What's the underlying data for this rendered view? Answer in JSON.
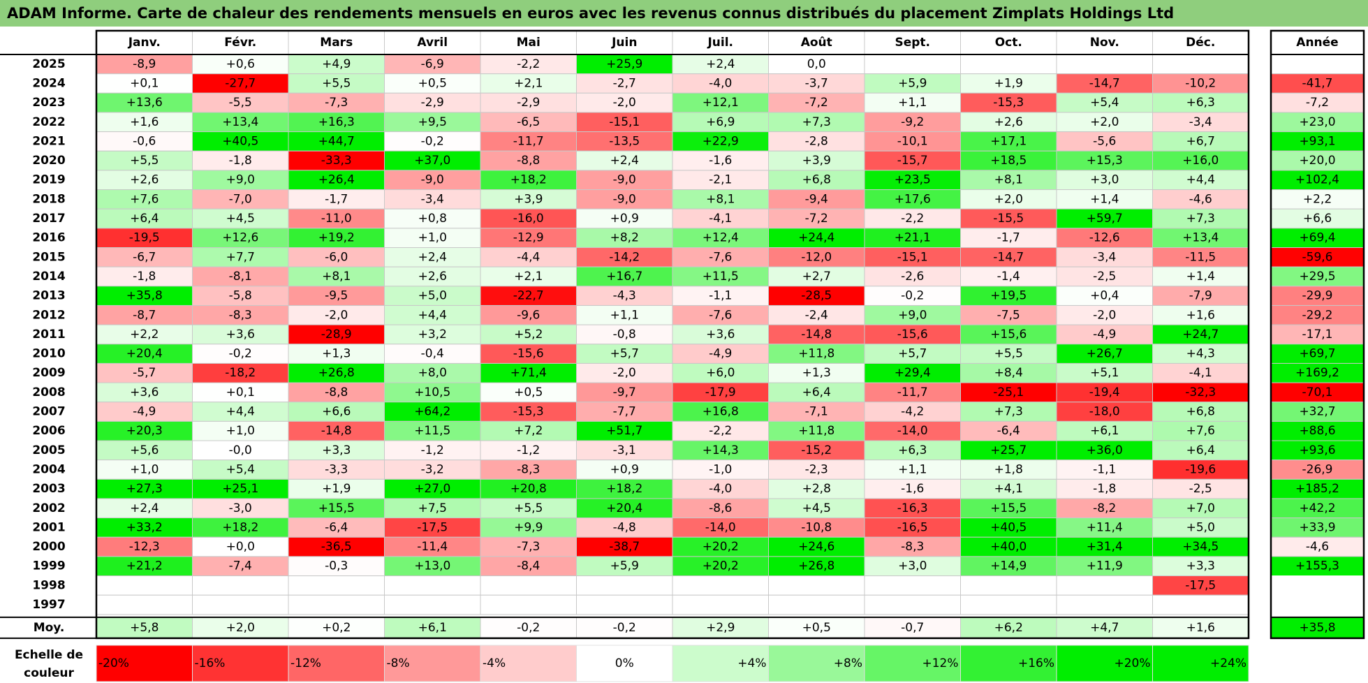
{
  "title": "ADAM Informe. Carte de chaleur des rendements mensuels en euros avec les revenus connus distribués du placement Zimplats Holdings Ltd",
  "chart_data": {
    "type": "heatmap",
    "title": "ADAM Informe. Carte de chaleur des rendements mensuels en euros avec les revenus connus distribués du placement Zimplats Holdings Ltd",
    "months": [
      "Janv.",
      "Févr.",
      "Mars",
      "Avril",
      "Mai",
      "Juin",
      "Juil.",
      "Août",
      "Sept.",
      "Oct.",
      "Nov.",
      "Déc."
    ],
    "year_header": "Année",
    "rows": [
      {
        "year": "2025",
        "values": [
          "-8,9",
          "+0,6",
          "+4,9",
          "-6,9",
          "-2,2",
          "+25,9",
          "+2,4",
          "0,0",
          "",
          "",
          "",
          ""
        ],
        "annual": ""
      },
      {
        "year": "2024",
        "values": [
          "+0,1",
          "-27,7",
          "+5,5",
          "+0,5",
          "+2,1",
          "-2,7",
          "-4,0",
          "-3,7",
          "+5,9",
          "+1,9",
          "-14,7",
          "-10,2"
        ],
        "annual": "-41,7"
      },
      {
        "year": "2023",
        "values": [
          "+13,6",
          "-5,5",
          "-7,3",
          "-2,9",
          "-2,9",
          "-2,0",
          "+12,1",
          "-7,2",
          "+1,1",
          "-15,3",
          "+5,4",
          "+6,3"
        ],
        "annual": "-7,2"
      },
      {
        "year": "2022",
        "values": [
          "+1,6",
          "+13,4",
          "+16,3",
          "+9,5",
          "-6,5",
          "-15,1",
          "+6,9",
          "+7,3",
          "-9,2",
          "+2,6",
          "+2,0",
          "-3,4"
        ],
        "annual": "+23,0"
      },
      {
        "year": "2021",
        "values": [
          "-0,6",
          "+40,5",
          "+44,7",
          "-0,2",
          "-11,7",
          "-13,5",
          "+22,9",
          "-2,8",
          "-10,1",
          "+17,1",
          "-5,6",
          "+6,7"
        ],
        "annual": "+93,1"
      },
      {
        "year": "2020",
        "values": [
          "+5,5",
          "-1,8",
          "-33,3",
          "+37,0",
          "-8,8",
          "+2,4",
          "-1,6",
          "+3,9",
          "-15,7",
          "+18,5",
          "+15,3",
          "+16,0"
        ],
        "annual": "+20,0"
      },
      {
        "year": "2019",
        "values": [
          "+2,6",
          "+9,0",
          "+26,4",
          "-9,0",
          "+18,2",
          "-9,0",
          "-2,1",
          "+6,8",
          "+23,5",
          "+8,1",
          "+3,0",
          "+4,4"
        ],
        "annual": "+102,4"
      },
      {
        "year": "2018",
        "values": [
          "+7,6",
          "-7,0",
          "-1,7",
          "-3,4",
          "+3,9",
          "-9,0",
          "+8,1",
          "-9,4",
          "+17,6",
          "+2,0",
          "+1,4",
          "-4,6"
        ],
        "annual": "+2,2"
      },
      {
        "year": "2017",
        "values": [
          "+6,4",
          "+4,5",
          "-11,0",
          "+0,8",
          "-16,0",
          "+0,9",
          "-4,1",
          "-7,2",
          "-2,2",
          "-15,5",
          "+59,7",
          "+7,3"
        ],
        "annual": "+6,6"
      },
      {
        "year": "2016",
        "values": [
          "-19,5",
          "+12,6",
          "+19,2",
          "+1,0",
          "-12,9",
          "+8,2",
          "+12,4",
          "+24,4",
          "+21,1",
          "-1,7",
          "-12,6",
          "+13,4"
        ],
        "annual": "+69,4"
      },
      {
        "year": "2015",
        "values": [
          "-6,7",
          "+7,7",
          "-6,0",
          "+2,4",
          "-4,4",
          "-14,2",
          "-7,6",
          "-12,0",
          "-15,1",
          "-14,7",
          "-3,4",
          "-11,5"
        ],
        "annual": "-59,6"
      },
      {
        "year": "2014",
        "values": [
          "-1,8",
          "-8,1",
          "+8,1",
          "+2,6",
          "+2,1",
          "+16,7",
          "+11,5",
          "+2,7",
          "-2,6",
          "-1,4",
          "-2,5",
          "+1,4"
        ],
        "annual": "+29,5"
      },
      {
        "year": "2013",
        "values": [
          "+35,8",
          "-5,8",
          "-9,5",
          "+5,0",
          "-22,7",
          "-4,3",
          "-1,1",
          "-28,5",
          "-0,2",
          "+19,5",
          "+0,4",
          "-7,9"
        ],
        "annual": "-29,9"
      },
      {
        "year": "2012",
        "values": [
          "-8,7",
          "-8,3",
          "-2,0",
          "+4,4",
          "-9,6",
          "+1,1",
          "-7,6",
          "-2,4",
          "+9,0",
          "-7,5",
          "-2,0",
          "+1,6"
        ],
        "annual": "-29,2"
      },
      {
        "year": "2011",
        "values": [
          "+2,2",
          "+3,6",
          "-28,9",
          "+3,2",
          "+5,2",
          "-0,8",
          "+3,6",
          "-14,8",
          "-15,6",
          "+15,6",
          "-4,9",
          "+24,7"
        ],
        "annual": "-17,1"
      },
      {
        "year": "2010",
        "values": [
          "+20,4",
          "-0,2",
          "+1,3",
          "-0,4",
          "-15,6",
          "+5,7",
          "-4,9",
          "+11,8",
          "+5,7",
          "+5,5",
          "+26,7",
          "+4,3"
        ],
        "annual": "+69,7"
      },
      {
        "year": "2009",
        "values": [
          "-5,7",
          "-18,2",
          "+26,8",
          "+8,0",
          "+71,4",
          "-2,0",
          "+6,0",
          "+1,3",
          "+29,4",
          "+8,4",
          "+5,1",
          "-4,1"
        ],
        "annual": "+169,2"
      },
      {
        "year": "2008",
        "values": [
          "+3,6",
          "+0,1",
          "-8,8",
          "+10,5",
          "+0,5",
          "-9,7",
          "-17,9",
          "+6,4",
          "-11,7",
          "-25,1",
          "-19,4",
          "-32,3"
        ],
        "annual": "-70,1"
      },
      {
        "year": "2007",
        "values": [
          "-4,9",
          "+4,4",
          "+6,6",
          "+64,2",
          "-15,3",
          "-7,7",
          "+16,8",
          "-7,1",
          "-4,2",
          "+7,3",
          "-18,0",
          "+6,8"
        ],
        "annual": "+32,7"
      },
      {
        "year": "2006",
        "values": [
          "+20,3",
          "+1,0",
          "-14,8",
          "+11,5",
          "+7,2",
          "+51,7",
          "-2,2",
          "+11,8",
          "-14,0",
          "-6,4",
          "+6,1",
          "+7,6"
        ],
        "annual": "+88,6"
      },
      {
        "year": "2005",
        "values": [
          "+5,6",
          "-0,0",
          "+3,3",
          "-1,2",
          "-1,2",
          "-3,1",
          "+14,3",
          "-15,2",
          "+6,3",
          "+25,7",
          "+36,0",
          "+6,4"
        ],
        "annual": "+93,6"
      },
      {
        "year": "2004",
        "values": [
          "+1,0",
          "+5,4",
          "-3,3",
          "-3,2",
          "-8,3",
          "+0,9",
          "-1,0",
          "-2,3",
          "+1,1",
          "+1,8",
          "-1,1",
          "-19,6"
        ],
        "annual": "-26,9"
      },
      {
        "year": "2003",
        "values": [
          "+27,3",
          "+25,1",
          "+1,9",
          "+27,0",
          "+20,8",
          "+18,2",
          "-4,0",
          "+2,8",
          "-1,6",
          "+4,1",
          "-1,8",
          "-2,5"
        ],
        "annual": "+185,2"
      },
      {
        "year": "2002",
        "values": [
          "+2,4",
          "-3,0",
          "+15,5",
          "+7,5",
          "+5,5",
          "+20,4",
          "-8,6",
          "+4,5",
          "-16,3",
          "+15,5",
          "-8,2",
          "+7,0"
        ],
        "annual": "+42,2"
      },
      {
        "year": "2001",
        "values": [
          "+33,2",
          "+18,2",
          "-6,4",
          "-17,5",
          "+9,9",
          "-4,8",
          "-14,0",
          "-10,8",
          "-16,5",
          "+40,5",
          "+11,4",
          "+5,0"
        ],
        "annual": "+33,9"
      },
      {
        "year": "2000",
        "values": [
          "-12,3",
          "+0,0",
          "-36,5",
          "-11,4",
          "-7,3",
          "-38,7",
          "+20,2",
          "+24,6",
          "-8,3",
          "+40,0",
          "+31,4",
          "+34,5"
        ],
        "annual": "-4,6"
      },
      {
        "year": "1999",
        "values": [
          "+21,2",
          "-7,4",
          "-0,3",
          "+13,0",
          "-8,4",
          "+5,9",
          "+20,2",
          "+26,8",
          "+3,0",
          "+14,9",
          "+11,9",
          "+3,3"
        ],
        "annual": "+155,3"
      },
      {
        "year": "1998",
        "values": [
          "",
          "",
          "",
          "",
          "",
          "",
          "",
          "",
          "",
          "",
          "",
          "-17,5"
        ],
        "annual": ""
      },
      {
        "year": "1997",
        "values": [
          "",
          "",
          "",
          "",
          "",
          "",
          "",
          "",
          "",
          "",
          "",
          ""
        ],
        "annual": ""
      }
    ],
    "average": {
      "label": "Moy.",
      "values": [
        "+5,8",
        "+2,0",
        "+0,2",
        "+6,1",
        "-0,2",
        "-0,2",
        "+2,9",
        "+0,5",
        "-0,7",
        "+6,2",
        "+4,7",
        "+1,6"
      ],
      "annual": "+35,8"
    },
    "scale": {
      "label": "Echelle de couleur",
      "steps": [
        "-20%",
        "-16%",
        "-12%",
        "-8%",
        "-4%",
        "0%",
        "+4%",
        "+8%",
        "+12%",
        "+16%",
        "+20%",
        "+24%"
      ]
    },
    "colors": {
      "red": "#ff0000",
      "green": "#00ee00",
      "white": "#ffffff",
      "border": "#c8c8c8",
      "title_bg": "#8fce7d"
    }
  }
}
